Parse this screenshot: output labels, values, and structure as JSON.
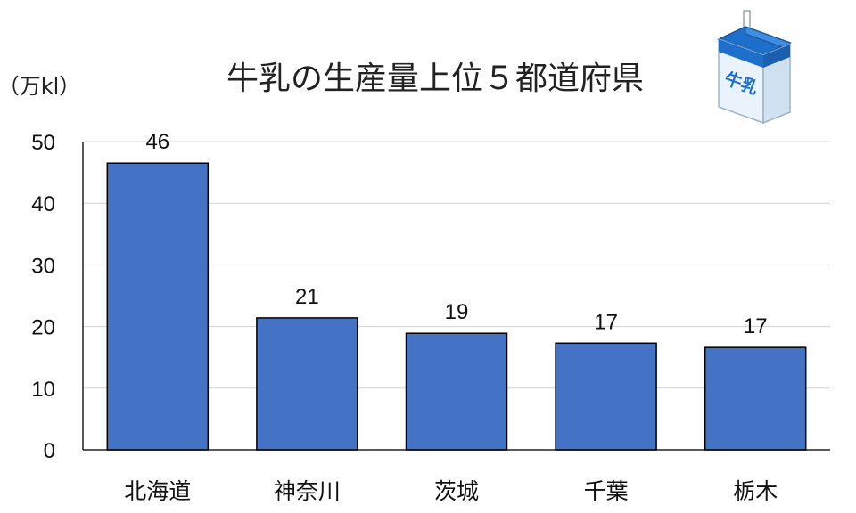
{
  "chart_data": {
    "type": "bar",
    "title": "牛乳の生産量上位５都道府県",
    "ylabel": "（万kl）",
    "xlabel": "",
    "categories": [
      "北海道",
      "神奈川",
      "茨城",
      "千葉",
      "栃木"
    ],
    "values": [
      46.5,
      21.4,
      18.9,
      17.3,
      16.6
    ],
    "data_labels": [
      "46",
      "21",
      "19",
      "17",
      "17"
    ],
    "ylim": [
      0,
      50
    ],
    "yticks": [
      0,
      10,
      20,
      30,
      40,
      50
    ],
    "grid": true,
    "bar_color": "#4472C4",
    "bar_edge_color": "#000000"
  },
  "decoration": {
    "milk_carton_label": "牛乳",
    "milk_carton_icon": "milk-carton-icon"
  }
}
